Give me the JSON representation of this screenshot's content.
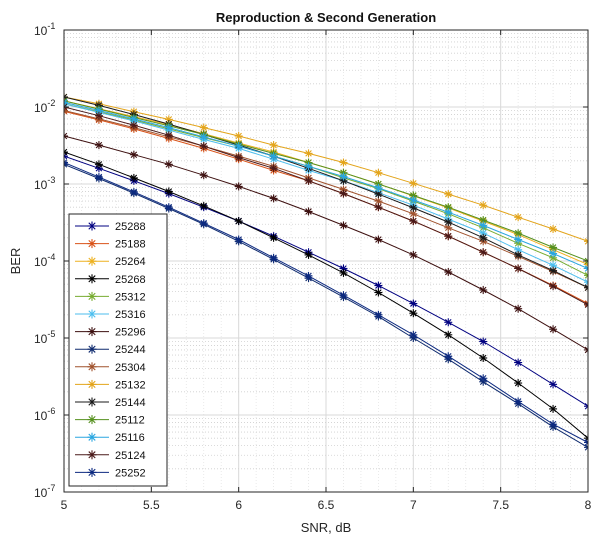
{
  "chart_data": {
    "type": "line",
    "title": "Reproduction & Second Generation",
    "xlabel": "SNR, dB",
    "ylabel": "BER",
    "xlim": [
      5,
      8
    ],
    "ylim": [
      1e-07,
      0.1
    ],
    "y_scale": "log",
    "grid": "major and minor",
    "legend_position": "bottom-left",
    "x_ticks": [
      "5",
      "5.5",
      "6",
      "6.5",
      "7",
      "7.5",
      "8"
    ],
    "x": [
      5.0,
      5.2,
      5.4,
      5.6,
      5.8,
      6.0,
      6.2,
      6.4,
      6.6,
      6.8,
      7.0,
      7.2,
      7.4,
      7.6,
      7.8,
      8.0
    ],
    "series": [
      {
        "name": "25288",
        "color": "#000080",
        "marker": "asterisk",
        "values": [
          0.0023,
          0.0016,
          0.0011,
          0.00075,
          0.0005,
          0.00033,
          0.00021,
          0.00013,
          8e-05,
          4.8e-05,
          2.8e-05,
          1.6e-05,
          9e-06,
          4.8e-06,
          2.5e-06,
          1.3e-06
        ]
      },
      {
        "name": "25188",
        "color": "#d95319",
        "marker": "asterisk",
        "values": [
          0.0088,
          0.0068,
          0.0052,
          0.0039,
          0.0029,
          0.0021,
          0.0015,
          0.0011,
          0.00075,
          0.0005,
          0.00033,
          0.00021,
          0.00013,
          8e-05,
          4.8e-05,
          2.8e-05
        ]
      },
      {
        "name": "25264",
        "color": "#edb120",
        "marker": "asterisk",
        "values": [
          0.012,
          0.0095,
          0.0075,
          0.0059,
          0.0045,
          0.0034,
          0.0026,
          0.0019,
          0.0014,
          0.001,
          0.0007,
          0.00049,
          0.00033,
          0.00022,
          0.00014,
          9e-05
        ]
      },
      {
        "name": "25268",
        "color": "#000000",
        "marker": "asterisk",
        "values": [
          0.0026,
          0.0018,
          0.0012,
          0.0008,
          0.00052,
          0.00033,
          0.0002,
          0.00012,
          7e-05,
          3.9e-05,
          2.1e-05,
          1.1e-05,
          5.5e-06,
          2.6e-06,
          1.2e-06,
          5e-07
        ]
      },
      {
        "name": "25312",
        "color": "#77ac30",
        "marker": "asterisk",
        "values": [
          0.011,
          0.0087,
          0.0068,
          0.0052,
          0.004,
          0.0031,
          0.0023,
          0.0017,
          0.0012,
          0.00087,
          0.0006,
          0.00041,
          0.00027,
          0.00017,
          0.00011,
          6.5e-05
        ]
      },
      {
        "name": "25316",
        "color": "#4dbeee",
        "marker": "asterisk",
        "values": [
          0.011,
          0.0085,
          0.0066,
          0.005,
          0.0038,
          0.0029,
          0.0021,
          0.0015,
          0.0011,
          0.00077,
          0.00053,
          0.00035,
          0.00023,
          0.00014,
          8.8e-05,
          5.3e-05
        ]
      },
      {
        "name": "25296",
        "color": "#3d1010",
        "marker": "asterisk",
        "values": [
          0.0042,
          0.0032,
          0.0024,
          0.0018,
          0.0013,
          0.00093,
          0.00065,
          0.00044,
          0.00029,
          0.00019,
          0.00012,
          7.2e-05,
          4.2e-05,
          2.4e-05,
          1.3e-05,
          7e-06
        ]
      },
      {
        "name": "25244",
        "color": "#0e2a6e",
        "marker": "asterisk",
        "values": [
          0.0018,
          0.00118,
          0.00076,
          0.00048,
          0.0003,
          0.00018,
          0.000105,
          6e-05,
          3.4e-05,
          1.9e-05,
          1e-05,
          5.3e-06,
          2.7e-06,
          1.4e-06,
          7e-07,
          3.8e-07
        ]
      },
      {
        "name": "25304",
        "color": "#a0522d",
        "marker": "asterisk",
        "values": [
          0.009,
          0.007,
          0.0054,
          0.0041,
          0.0031,
          0.0023,
          0.0017,
          0.0012,
          0.00085,
          0.0006,
          0.00041,
          0.00027,
          0.00018,
          0.000115,
          7.3e-05,
          4.5e-05
        ]
      },
      {
        "name": "25132",
        "color": "#e3a41a",
        "marker": "asterisk",
        "values": [
          0.0135,
          0.011,
          0.0087,
          0.0069,
          0.0054,
          0.0042,
          0.0032,
          0.0025,
          0.0019,
          0.0014,
          0.00102,
          0.00074,
          0.00053,
          0.00037,
          0.00026,
          0.00018
        ]
      },
      {
        "name": "25144",
        "color": "#1a1a1a",
        "marker": "asterisk",
        "values": [
          0.0135,
          0.0105,
          0.008,
          0.006,
          0.0044,
          0.0032,
          0.0023,
          0.0016,
          0.0011,
          0.00074,
          0.00049,
          0.00032,
          0.0002,
          0.00012,
          7.5e-05,
          4.5e-05
        ]
      },
      {
        "name": "25112",
        "color": "#55901e",
        "marker": "asterisk",
        "values": [
          0.012,
          0.0094,
          0.0073,
          0.0057,
          0.0044,
          0.0033,
          0.0025,
          0.0019,
          0.0014,
          0.001,
          0.00071,
          0.0005,
          0.00034,
          0.00023,
          0.00015,
          0.0001
        ]
      },
      {
        "name": "25116",
        "color": "#2aa6e0",
        "marker": "asterisk",
        "values": [
          0.0115,
          0.009,
          0.007,
          0.0054,
          0.0041,
          0.0031,
          0.0023,
          0.0017,
          0.00125,
          0.00089,
          0.00062,
          0.00043,
          0.00029,
          0.00019,
          0.000125,
          8e-05
        ]
      },
      {
        "name": "25124",
        "color": "#4a1a1a",
        "marker": "asterisk",
        "values": [
          0.01,
          0.0077,
          0.0058,
          0.0043,
          0.0031,
          0.0022,
          0.0016,
          0.0011,
          0.00075,
          0.0005,
          0.00033,
          0.00021,
          0.00013,
          8e-05,
          4.7e-05,
          2.7e-05
        ]
      },
      {
        "name": "25252",
        "color": "#0d2a80",
        "marker": "asterisk",
        "values": [
          0.0019,
          0.00123,
          0.00079,
          0.0005,
          0.00031,
          0.00019,
          0.00011,
          6.4e-05,
          3.6e-05,
          2e-05,
          1.1e-05,
          5.8e-06,
          3e-06,
          1.5e-06,
          7.6e-07,
          4.4e-07
        ]
      }
    ]
  }
}
